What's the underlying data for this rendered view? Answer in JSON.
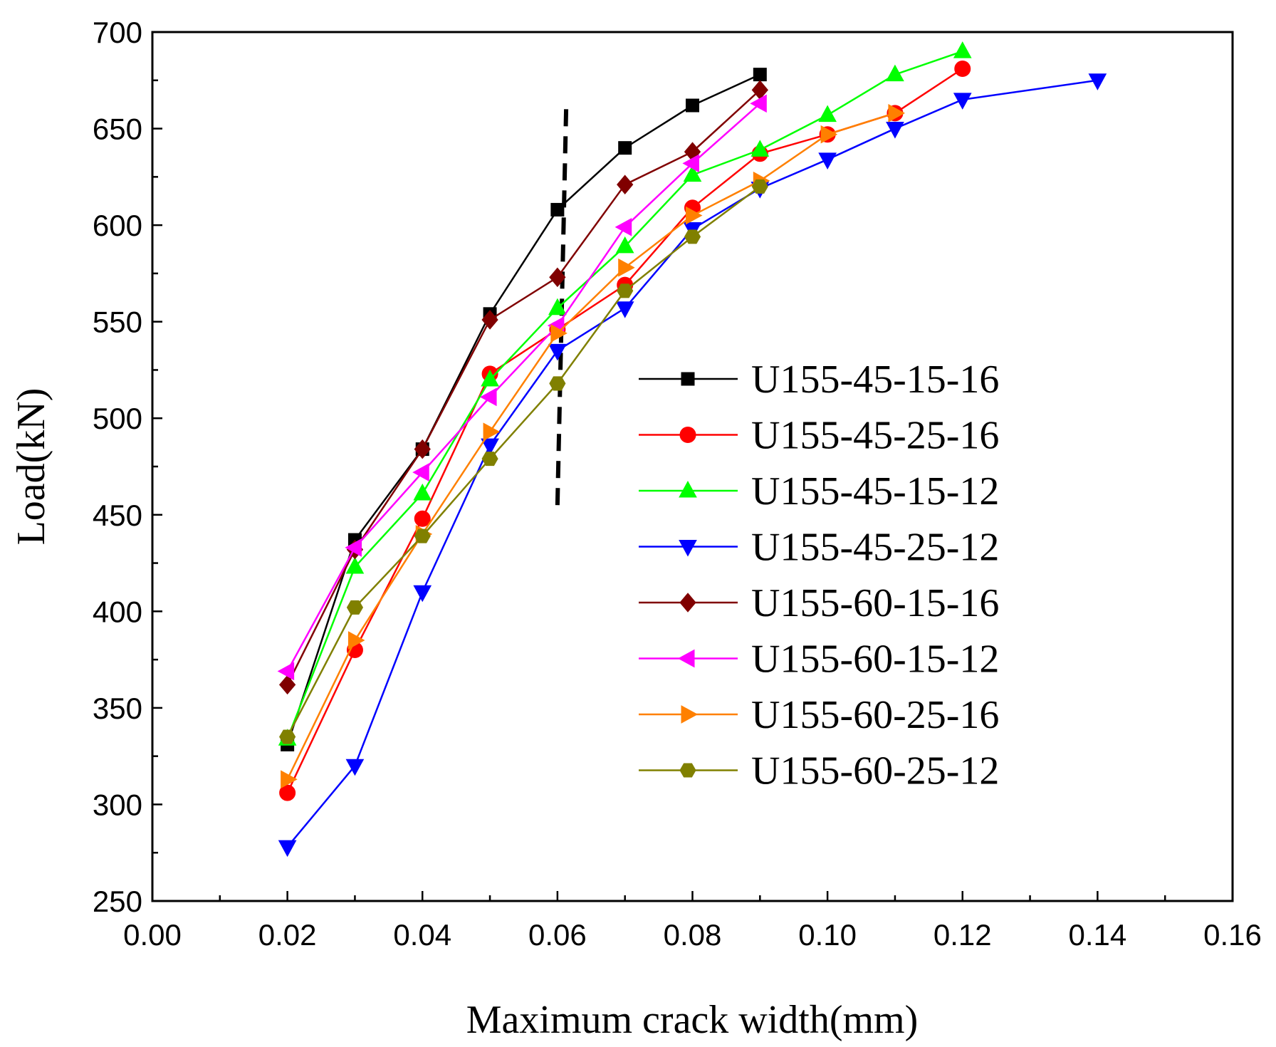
{
  "chart_data": {
    "type": "line",
    "title": "",
    "xlabel": "Maximum crack width(mm)",
    "ylabel": "Load(kN)",
    "xlim": [
      0,
      0.16
    ],
    "ylim": [
      250,
      700
    ],
    "x_ticks": [
      "0.00",
      "0.02",
      "0.04",
      "0.06",
      "0.08",
      "0.10",
      "0.12",
      "0.14",
      "0.16"
    ],
    "y_ticks": [
      "250",
      "300",
      "350",
      "400",
      "450",
      "500",
      "550",
      "600",
      "650",
      "700"
    ],
    "legend_position": "center-right",
    "reference_line": {
      "style": "dashed",
      "color": "#000000",
      "x_at_bottom": 0.06,
      "y_bottom": 455,
      "x_at_top": 0.0613,
      "y_top": 662
    },
    "series": [
      {
        "name": "U155-45-15-16",
        "color": "#000000",
        "marker": "square",
        "x": [
          0.02,
          0.03,
          0.04,
          0.05,
          0.06,
          0.07,
          0.08,
          0.09
        ],
        "y": [
          331,
          437,
          484,
          554,
          608,
          640,
          662,
          678
        ]
      },
      {
        "name": "U155-45-25-16",
        "color": "#ff0000",
        "marker": "circle",
        "x": [
          0.02,
          0.03,
          0.04,
          0.05,
          0.06,
          0.07,
          0.08,
          0.09,
          0.1,
          0.11,
          0.12
        ],
        "y": [
          306,
          380,
          448,
          523,
          546,
          569,
          609,
          637,
          647,
          658,
          681
        ]
      },
      {
        "name": "U155-45-15-12",
        "color": "#00ff00",
        "marker": "triangle-up",
        "x": [
          0.02,
          0.03,
          0.04,
          0.05,
          0.06,
          0.07,
          0.08,
          0.09,
          0.1,
          0.11,
          0.12
        ],
        "y": [
          334,
          423,
          461,
          520,
          557,
          589,
          626,
          639,
          657,
          678,
          690
        ]
      },
      {
        "name": "U155-45-25-12",
        "color": "#0000ff",
        "marker": "triangle-down",
        "x": [
          0.02,
          0.03,
          0.04,
          0.05,
          0.06,
          0.07,
          0.08,
          0.09,
          0.1,
          0.11,
          0.12,
          0.14
        ],
        "y": [
          278,
          320,
          410,
          486,
          535,
          557,
          598,
          619,
          634,
          650,
          665,
          675
        ]
      },
      {
        "name": "U155-60-15-16",
        "color": "#800000",
        "marker": "diamond",
        "x": [
          0.02,
          0.03,
          0.04,
          0.05,
          0.06,
          0.07,
          0.08,
          0.09
        ],
        "y": [
          362,
          432,
          484,
          551,
          573,
          621,
          638,
          670
        ]
      },
      {
        "name": "U155-60-15-12",
        "color": "#ff00ff",
        "marker": "triangle-left",
        "x": [
          0.02,
          0.03,
          0.04,
          0.05,
          0.06,
          0.07,
          0.08,
          0.09
        ],
        "y": [
          369,
          433,
          472,
          511,
          548,
          599,
          632,
          663
        ]
      },
      {
        "name": "U155-60-25-16",
        "color": "#ff8000",
        "marker": "triangle-right",
        "x": [
          0.02,
          0.03,
          0.04,
          0.05,
          0.06,
          0.07,
          0.08,
          0.09,
          0.1,
          0.11
        ],
        "y": [
          313,
          385,
          440,
          493,
          544,
          578,
          605,
          623,
          647,
          658
        ]
      },
      {
        "name": "U155-60-25-12",
        "color": "#808000",
        "marker": "hexagon",
        "x": [
          0.02,
          0.03,
          0.04,
          0.05,
          0.06,
          0.07,
          0.08,
          0.09
        ],
        "y": [
          335,
          402,
          439,
          479,
          518,
          566,
          594,
          620
        ]
      }
    ]
  }
}
